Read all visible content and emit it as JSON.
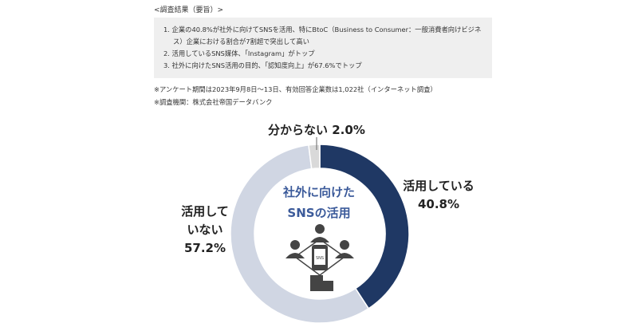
{
  "summary": {
    "heading": "<調査結果（要旨）>",
    "items": [
      "1.  企業の40.8%が社外に向けてSNSを活用、特にBtoC（Business to Consumer：一般消費者向けビジネ",
      "ス）企業における割合が7割超で突出して高い",
      "2. 活用しているSNS媒体、「Instagram」がトップ",
      "3. 社外に向けたSNS活用の目的、「認知度向上」が67.6%でトップ"
    ],
    "notes": [
      "※アンケート期間は2023年9月8日～13日、有効回答企業数は1,022社（インターネット調査）",
      "※調査機関：株式会社帝国データバンク"
    ]
  },
  "chart_data": {
    "type": "pie",
    "donut": true,
    "center_title": [
      "社外に向けた",
      "SNSの活用"
    ],
    "slices": [
      {
        "label": "活用している",
        "value": 40.8,
        "value_label": "40.8%",
        "color": "#1f3864"
      },
      {
        "label": "活用していない",
        "value": 57.2,
        "value_label": "57.2%",
        "color": "#d0d6e3"
      },
      {
        "label": "分からない",
        "value": 2.0,
        "value_label": "2.0%",
        "color": "#d9d9d9"
      }
    ],
    "start": "top",
    "direction": "clockwise",
    "center_icon": "people-network-sns-phone-icon"
  }
}
